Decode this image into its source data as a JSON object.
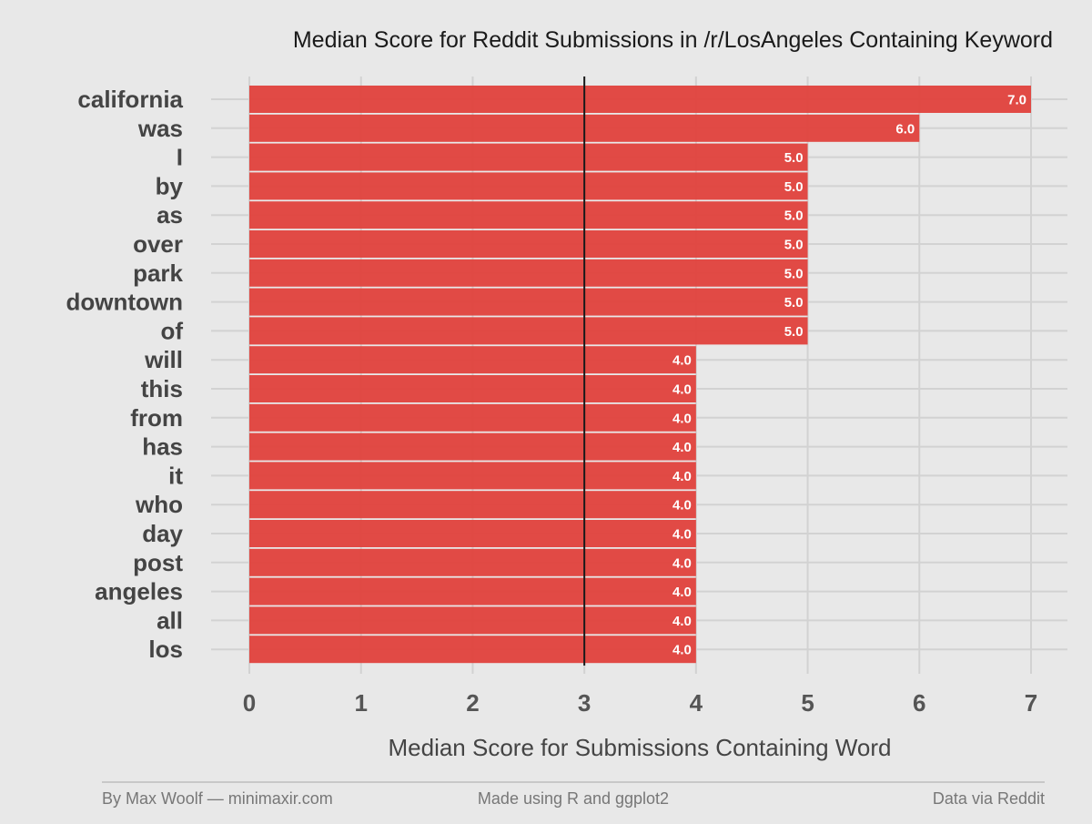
{
  "chart_data": {
    "type": "bar",
    "orientation": "horizontal",
    "title": "Median Score for Reddit Submissions in /r/LosAngeles Containing Keyword",
    "xlabel": "Median Score for Submissions Containing Word",
    "ylabel": "",
    "categories": [
      "california",
      "was",
      "I",
      "by",
      "as",
      "over",
      "park",
      "downtown",
      "of",
      "will",
      "this",
      "from",
      "has",
      "it",
      "who",
      "day",
      "post",
      "angeles",
      "all",
      "los"
    ],
    "values": [
      7,
      6,
      5,
      5,
      5,
      5,
      5,
      5,
      5,
      4,
      4,
      4,
      4,
      4,
      4,
      4,
      4,
      4,
      4,
      4
    ],
    "value_labels": [
      "7.0",
      "6.0",
      "5.0",
      "5.0",
      "5.0",
      "5.0",
      "5.0",
      "5.0",
      "5.0",
      "4.0",
      "4.0",
      "4.0",
      "4.0",
      "4.0",
      "4.0",
      "4.0",
      "4.0",
      "4.0",
      "4.0",
      "4.0"
    ],
    "xlim": [
      0,
      7
    ],
    "xticks": [
      "0",
      "1",
      "2",
      "3",
      "4",
      "5",
      "6",
      "7"
    ],
    "reference_line": 3,
    "grid": true,
    "bar_color": "#e0413c",
    "reference_color": "#1a1a1a",
    "background_color": "#e8e8e8",
    "grid_color": "#d2d2d2"
  },
  "footer": {
    "left": "By Max Woolf — minimaxir.com",
    "center": "Made using R and ggplot2",
    "right": "Data via Reddit"
  }
}
